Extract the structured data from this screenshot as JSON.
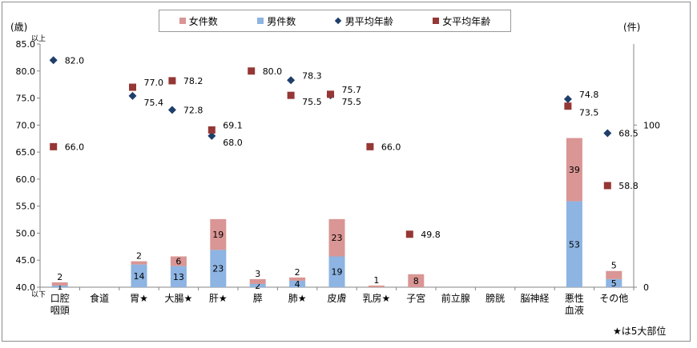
{
  "chart_data": {
    "type": "bar",
    "categories": [
      "口腔\n咽頭",
      "食道",
      "胃★",
      "大腸★",
      "肝★",
      "膵",
      "肺★",
      "皮膚",
      "乳房★",
      "子宮",
      "前立腺",
      "膀胱",
      "脳神経",
      "悪性\n血液",
      "その他"
    ],
    "series": [
      {
        "name": "女件数",
        "kind": "bar",
        "axis": "right",
        "color": "#d99694",
        "values": [
          2,
          null,
          2,
          6,
          19,
          3,
          2,
          23,
          1,
          8,
          null,
          null,
          null,
          39,
          5
        ]
      },
      {
        "name": "男件数",
        "kind": "bar",
        "axis": "right",
        "color": "#8db4e2",
        "values": [
          1,
          null,
          14,
          13,
          23,
          2,
          4,
          19,
          null,
          null,
          null,
          null,
          null,
          53,
          5
        ]
      },
      {
        "name": "男平均年齢",
        "kind": "marker",
        "marker": "diamond",
        "axis": "left",
        "color": "#1f3f6b",
        "values": [
          82.0,
          null,
          75.4,
          72.8,
          68.0,
          null,
          78.3,
          75.5,
          null,
          null,
          null,
          null,
          null,
          74.8,
          68.5
        ]
      },
      {
        "name": "女平均年齢",
        "kind": "marker",
        "marker": "square",
        "axis": "left",
        "color": "#953735",
        "values": [
          66.0,
          null,
          77.0,
          78.2,
          69.1,
          80.0,
          75.5,
          75.7,
          66.0,
          49.8,
          null,
          null,
          null,
          73.5,
          58.8
        ]
      }
    ],
    "y_left": {
      "label": "(歳)",
      "ylim": [
        40,
        85
      ],
      "ticks": [
        "40.0",
        "45.0",
        "50.0",
        "55.0",
        "60.0",
        "65.0",
        "70.0",
        "75.0",
        "80.0",
        "85.0"
      ],
      "top_note": "以上",
      "bottom_note": "以下"
    },
    "y_right": {
      "label": "(件)",
      "ylim": [
        0,
        150
      ],
      "ticks": [
        "0",
        "100"
      ]
    },
    "legend": {
      "position": "top-center"
    },
    "grid": false,
    "note": "★は5大部位"
  }
}
